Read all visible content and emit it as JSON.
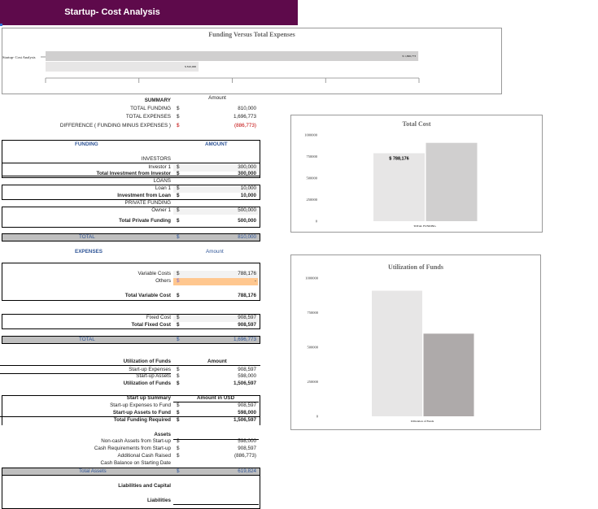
{
  "title": "Startup- Cost Analysis",
  "colors": {
    "banner": "#5e0a4b",
    "header_text": "#2f5597",
    "negative": "#c00000",
    "highlight": "#ffc78f",
    "total_bar": "#bfbfbf"
  },
  "chart_data": [
    {
      "type": "bar",
      "orientation": "horizontal",
      "title": "Funding Versus Total Expenses",
      "categories": [
        "Startup- Cost Analysis"
      ],
      "series": [
        {
          "values": [
            1696773
          ],
          "data_label": "$ 1,696,773",
          "color": "#d0cfcf"
        },
        {
          "values": [
            810000
          ],
          "data_label": "$ 810,000",
          "color": "#e7e6e6"
        }
      ],
      "xlim": [
        0,
        1700000
      ]
    },
    {
      "type": "bar",
      "title": "Total Cost",
      "categories": [
        "TOTAL FUNDING"
      ],
      "ylim": [
        0,
        1000000
      ],
      "yticks": [
        "0",
        "250000",
        "500000",
        "750000",
        "1000000"
      ],
      "series": [
        {
          "values": [
            788176
          ],
          "data_label": "$ 788,176",
          "color": "#e7e6e6"
        },
        {
          "values": [
            908597
          ],
          "color": "#d0cfcf"
        }
      ]
    },
    {
      "type": "bar",
      "title": "Utilization of Funds",
      "categories": [
        "Utilization of Funds"
      ],
      "ylim": [
        0,
        1000000
      ],
      "yticks": [
        "0",
        "250000",
        "500000",
        "750000",
        "1000000"
      ],
      "series": [
        {
          "values": [
            908597
          ],
          "color": "#e7e6e6"
        },
        {
          "values": [
            598000
          ],
          "color": "#aeaaaa"
        }
      ]
    }
  ],
  "summary": {
    "heading": "SUMMARY",
    "amount_header": "Amount",
    "rows": [
      {
        "label": "TOTAL FUNDING",
        "dollar": "$",
        "value": "810,000"
      },
      {
        "label": "TOTAL EXPENSES",
        "dollar": "$",
        "value": "1,696,773"
      },
      {
        "label": "DIFFERENCE  ( FUNDING MINUS EXPENSES )",
        "dollar": "$",
        "value": "(886,773)",
        "negative": true
      }
    ]
  },
  "funding": {
    "heading": "FUNDING",
    "amount_header": "AMOUNT",
    "rows": [
      {
        "label": "INVESTORS"
      },
      {
        "label": "Investor 1",
        "dollar": "$",
        "value": "300,000",
        "input": true
      },
      {
        "label": "Total Investment from Investor",
        "dollar": "$",
        "value": "300,000",
        "bold": true
      },
      {
        "label": "LOANS"
      },
      {
        "label": "Loan 1",
        "dollar": "$",
        "value": "10,000",
        "input": true
      },
      {
        "label": "Investment from Loan",
        "dollar": "$",
        "value": "10,000",
        "bold": true
      },
      {
        "label": "PRIVATE FUNDING"
      },
      {
        "label": "Owner 1",
        "dollar": "$",
        "value": "500,000",
        "input": true
      },
      {
        "label": "Total Private Funding",
        "dollar": "$",
        "value": "500,000",
        "bold": true
      }
    ],
    "total": {
      "label": "TOTAL",
      "dollar": "$",
      "value": "810,000"
    }
  },
  "expenses": {
    "heading": "EXPENSES",
    "amount_header": "Amount",
    "rows": [
      {
        "label": "Variable Costs",
        "dollar": "$",
        "value": "788,176",
        "input": true
      },
      {
        "label": "Others",
        "dollar": "$",
        "value": "-",
        "highlight": true
      },
      {
        "label": "Total Variable Cost",
        "dollar": "$",
        "value": "788,176",
        "bold": true
      },
      {
        "label": "Fixed Cost",
        "dollar": "$",
        "value": "908,597",
        "input": true
      },
      {
        "label": "Total Fixed Cost",
        "dollar": "$",
        "value": "908,597",
        "bold": true
      }
    ],
    "total": {
      "label": "TOTAL",
      "dollar": "$",
      "value": "1,696,773"
    }
  },
  "utilization": {
    "amount_header": "Amount",
    "rows": [
      {
        "label": "Utilization of Funds",
        "bold": true
      },
      {
        "label": "Start-up Expenses",
        "dollar": "$",
        "value": "908,597"
      },
      {
        "label": "Start-up Assets",
        "dollar": "$",
        "value": "598,000"
      },
      {
        "label": "Utilization of Funds",
        "dollar": "$",
        "value": "1,506,597",
        "bold": true
      }
    ]
  },
  "startup_summary": {
    "amount_header": "Amount in USD",
    "rows": [
      {
        "label": "Start up Summary",
        "bold": true
      },
      {
        "label": "Start-up Expenses to Fund",
        "dollar": "$",
        "value": "908,597"
      },
      {
        "label": "Start-up Assets to Fund",
        "dollar": "$",
        "value": "598,000",
        "bold": true
      },
      {
        "label": "Total Funding Required",
        "dollar": "$",
        "value": "1,506,597",
        "bold": true
      }
    ]
  },
  "assets": {
    "rows": [
      {
        "label": "Assets",
        "bold": true
      },
      {
        "label": "Non-cash Assets from Start-up",
        "dollar": "$",
        "value": "598,000"
      },
      {
        "label": "Cash Requirements from Start-up",
        "dollar": "$",
        "value": "908,597"
      },
      {
        "label": "Additional Cash Raised",
        "dollar": "$",
        "value": "(886,773)"
      },
      {
        "label": "Cash Balance on Starting Date"
      }
    ],
    "total": {
      "label": "Total Assets",
      "dollar": "$",
      "value": "619,824"
    }
  },
  "liabilities": {
    "rows": [
      {
        "label": "Liabilities and Capital",
        "bold": true
      },
      {
        "label": "Liabilities",
        "bold": true
      }
    ]
  }
}
